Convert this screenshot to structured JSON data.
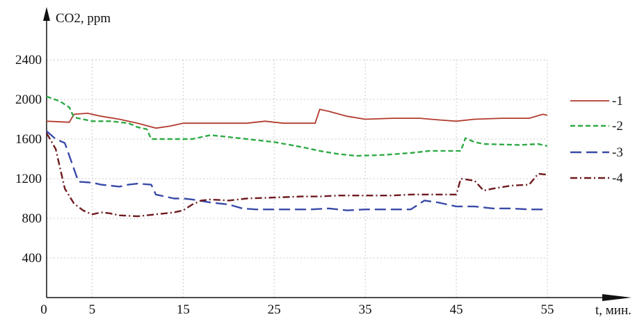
{
  "chart_data": {
    "type": "line",
    "title": "",
    "ylabel": "CO2, ppm",
    "xlabel": "t, мин.",
    "xlim": [
      0,
      55
    ],
    "ylim": [
      0,
      2600
    ],
    "x_ticks": [
      0,
      5,
      15,
      25,
      35,
      45,
      55
    ],
    "y_ticks": [
      400,
      800,
      1200,
      1600,
      2000,
      2400
    ],
    "x_tick_labels": [
      "0",
      "5",
      "15",
      "25",
      "35",
      "45",
      "55"
    ],
    "y_tick_labels": [
      "400",
      "800",
      "1200",
      "1600",
      "2000",
      "2400"
    ],
    "x_gridlines": [
      5,
      15,
      25,
      35,
      45
    ],
    "y_gridlines": [
      400,
      800,
      1200,
      1600,
      2000,
      2400
    ],
    "grid": true,
    "legend_position": "right",
    "series": [
      {
        "name": "-1",
        "color": "#b23a2e",
        "dash": "solid",
        "points": [
          [
            0,
            1780
          ],
          [
            2.5,
            1770
          ],
          [
            3,
            1850
          ],
          [
            4.5,
            1860
          ],
          [
            6,
            1830
          ],
          [
            8,
            1800
          ],
          [
            10,
            1760
          ],
          [
            12,
            1710
          ],
          [
            13.5,
            1730
          ],
          [
            15,
            1760
          ],
          [
            18,
            1760
          ],
          [
            20,
            1760
          ],
          [
            22,
            1760
          ],
          [
            24,
            1780
          ],
          [
            26,
            1760
          ],
          [
            29.5,
            1760
          ],
          [
            30,
            1900
          ],
          [
            31,
            1880
          ],
          [
            33,
            1830
          ],
          [
            35,
            1800
          ],
          [
            38,
            1810
          ],
          [
            41,
            1810
          ],
          [
            43.5,
            1790
          ],
          [
            45,
            1780
          ],
          [
            47,
            1800
          ],
          [
            50,
            1810
          ],
          [
            53,
            1810
          ],
          [
            54.5,
            1850
          ],
          [
            55,
            1840
          ]
        ]
      },
      {
        "name": "-2",
        "color": "#2eaa44",
        "dash": "dashed",
        "points": [
          [
            0,
            2030
          ],
          [
            1.5,
            1980
          ],
          [
            2.5,
            1920
          ],
          [
            3,
            1820
          ],
          [
            4,
            1800
          ],
          [
            5,
            1780
          ],
          [
            7,
            1780
          ],
          [
            9,
            1760
          ],
          [
            10,
            1720
          ],
          [
            11,
            1700
          ],
          [
            11.5,
            1600
          ],
          [
            13,
            1600
          ],
          [
            15,
            1600
          ],
          [
            16,
            1600
          ],
          [
            18,
            1640
          ],
          [
            20,
            1620
          ],
          [
            22,
            1600
          ],
          [
            25,
            1570
          ],
          [
            28,
            1520
          ],
          [
            30,
            1480
          ],
          [
            32,
            1450
          ],
          [
            34,
            1430
          ],
          [
            37,
            1440
          ],
          [
            40,
            1460
          ],
          [
            42,
            1480
          ],
          [
            44,
            1480
          ],
          [
            45.5,
            1480
          ],
          [
            46,
            1610
          ],
          [
            47,
            1570
          ],
          [
            48,
            1550
          ],
          [
            52,
            1540
          ],
          [
            54,
            1550
          ],
          [
            55,
            1530
          ]
        ]
      },
      {
        "name": "-3",
        "color": "#3a4aa8",
        "dash": "longdash",
        "points": [
          [
            0,
            1680
          ],
          [
            1,
            1600
          ],
          [
            2,
            1560
          ],
          [
            3,
            1300
          ],
          [
            3.5,
            1170
          ],
          [
            5,
            1160
          ],
          [
            6,
            1140
          ],
          [
            8,
            1120
          ],
          [
            9,
            1140
          ],
          [
            10,
            1150
          ],
          [
            11.5,
            1140
          ],
          [
            12,
            1040
          ],
          [
            13,
            1020
          ],
          [
            14,
            1000
          ],
          [
            15,
            1000
          ],
          [
            16,
            990
          ],
          [
            18,
            960
          ],
          [
            20,
            940
          ],
          [
            21.5,
            900
          ],
          [
            23,
            890
          ],
          [
            25,
            890
          ],
          [
            27,
            890
          ],
          [
            29,
            890
          ],
          [
            31,
            900
          ],
          [
            33,
            880
          ],
          [
            35,
            890
          ],
          [
            37,
            890
          ],
          [
            40,
            890
          ],
          [
            41.5,
            980
          ],
          [
            43,
            960
          ],
          [
            44,
            940
          ],
          [
            45,
            920
          ],
          [
            47,
            920
          ],
          [
            49,
            900
          ],
          [
            51,
            900
          ],
          [
            53,
            890
          ],
          [
            55,
            890
          ]
        ]
      },
      {
        "name": "-4",
        "color": "#6e1a1f",
        "dash": "dashdot",
        "points": [
          [
            0,
            1660
          ],
          [
            1,
            1500
          ],
          [
            1.5,
            1300
          ],
          [
            2,
            1100
          ],
          [
            3,
            950
          ],
          [
            4,
            880
          ],
          [
            5,
            840
          ],
          [
            6,
            860
          ],
          [
            7,
            850
          ],
          [
            8,
            830
          ],
          [
            10,
            820
          ],
          [
            12,
            840
          ],
          [
            13,
            850
          ],
          [
            14,
            860
          ],
          [
            15,
            880
          ],
          [
            16,
            940
          ],
          [
            17,
            980
          ],
          [
            18,
            990
          ],
          [
            20,
            980
          ],
          [
            22,
            1000
          ],
          [
            25,
            1010
          ],
          [
            28,
            1020
          ],
          [
            30,
            1020
          ],
          [
            32,
            1030
          ],
          [
            35,
            1030
          ],
          [
            38,
            1030
          ],
          [
            40,
            1040
          ],
          [
            42,
            1040
          ],
          [
            45,
            1040
          ],
          [
            45.5,
            1200
          ],
          [
            47,
            1180
          ],
          [
            48,
            1080
          ],
          [
            49,
            1100
          ],
          [
            51,
            1130
          ],
          [
            53,
            1140
          ],
          [
            54,
            1250
          ],
          [
            55,
            1240
          ]
        ]
      }
    ]
  }
}
